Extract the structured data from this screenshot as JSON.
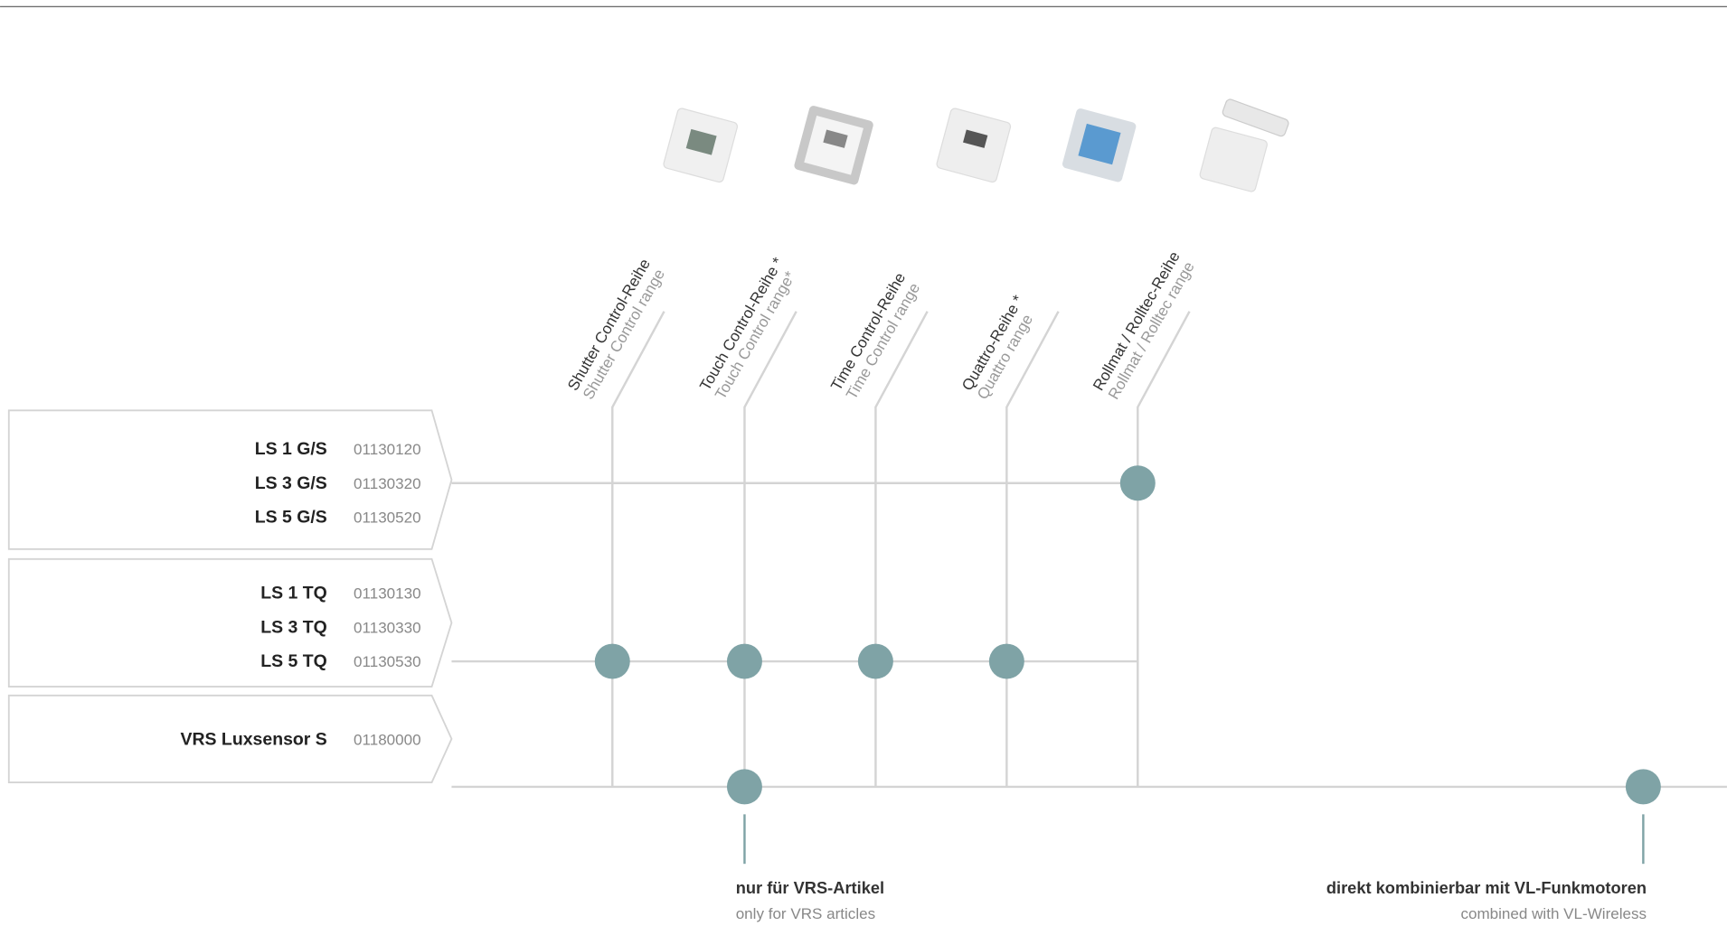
{
  "columns": [
    {
      "de": "Shutter Control-Reihe",
      "en": "Shutter Control range"
    },
    {
      "de": "Touch Control-Reihe *",
      "en": "Touch Control range*"
    },
    {
      "de": "Time Control-Reihe",
      "en": "Time Control range"
    },
    {
      "de": "Quattro-Reihe *",
      "en": "Quattro range"
    },
    {
      "de": "Rollmat / Rolltec-Reihe",
      "en": "Rollmat / Rolltec range"
    }
  ],
  "groups": [
    {
      "items": [
        {
          "name": "LS 1 G/S",
          "code": "01130120"
        },
        {
          "name": "LS 3 G/S",
          "code": "01130320"
        },
        {
          "name": "LS 5 G/S",
          "code": "01130520"
        }
      ]
    },
    {
      "items": [
        {
          "name": "LS 1 TQ",
          "code": "01130130"
        },
        {
          "name": "LS 3 TQ",
          "code": "01130330"
        },
        {
          "name": "LS 5 TQ",
          "code": "01130530"
        }
      ]
    },
    {
      "items": [
        {
          "name": "VRS Luxsensor S",
          "code": "01180000"
        }
      ]
    }
  ],
  "notes": [
    {
      "de": "nur für VRS-Artikel",
      "en": "only for VRS articles"
    },
    {
      "de": "direkt kombinierbar mit VL-Funkmotoren",
      "en": "combined with VL-Wireless"
    }
  ]
}
